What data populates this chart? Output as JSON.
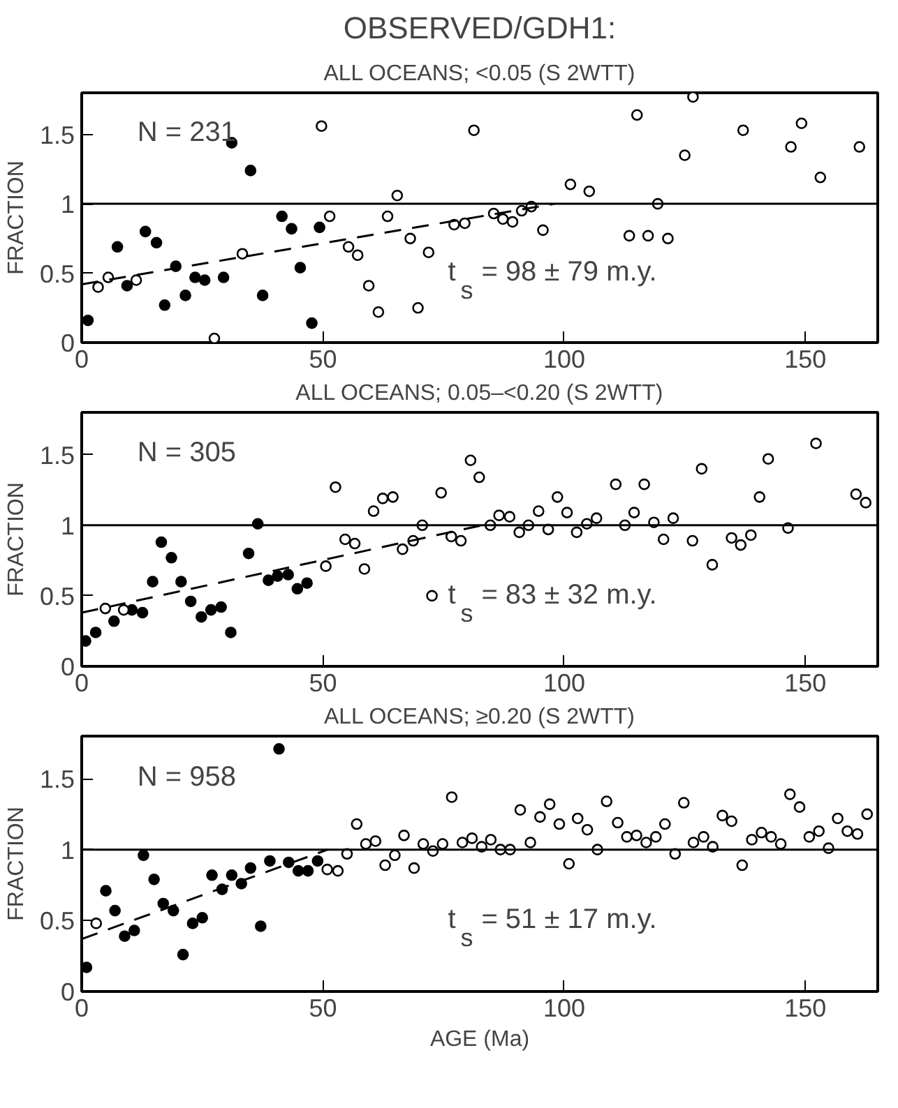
{
  "chart_data": [
    {
      "type": "scatter",
      "title": "OBSERVED/GDH1:",
      "subtitle": "ALL OCEANS; <0.05 (S 2WTT)",
      "ylabel": "FRACTION",
      "xlim": [
        0,
        165
      ],
      "ylim": [
        0,
        1.8
      ],
      "xticks": [
        0,
        50,
        100,
        150
      ],
      "yticks": [
        0,
        0.5,
        1,
        1.5
      ],
      "grid": false,
      "annotations": [
        "N = 231",
        "t$_{s}$ = 98 ± 79 m.y."
      ],
      "ref_lines": [
        {
          "axis": "y",
          "value": 1,
          "label": null,
          "color": "#000000",
          "line_style": "solid"
        }
      ],
      "series": [
        {
          "color": "#000000",
          "marker": "circle",
          "x": [
            1.3,
            7.4,
            9.4,
            13.2,
            15.5,
            17.2,
            19.5,
            21.5,
            23.5,
            25.5,
            29.4,
            31.1,
            35.0,
            37.5,
            41.5,
            43.5,
            45.3,
            47.7,
            49.3
          ],
          "values": [
            0.16,
            0.69,
            0.41,
            0.8,
            0.72,
            0.27,
            0.55,
            0.34,
            0.47,
            0.45,
            0.47,
            1.44,
            1.24,
            0.34,
            0.91,
            0.82,
            0.54,
            0.14,
            0.83
          ]
        },
        {
          "color": "#000000",
          "marker": "circle",
          "x": [
            3.4,
            5.5,
            11.3,
            27.5,
            33.3,
            49.7,
            51.4,
            55.3,
            57.2,
            59.5,
            61.5,
            63.4,
            65.4,
            68.1,
            69.7,
            71.9,
            77.2,
            79.4,
            81.3,
            85.4,
            87.3,
            89.3,
            91.2,
            93.2,
            95.6,
            101.3,
            105.2,
            113.5,
            115.1,
            117.4,
            119.4,
            121.5,
            125.0,
            126.7,
            137.1,
            147.0,
            149.2,
            153.1,
            161.2
          ],
          "values": [
            0.4,
            0.47,
            0.45,
            0.03,
            0.64,
            1.56,
            0.91,
            0.69,
            0.63,
            0.41,
            0.22,
            0.91,
            1.06,
            0.75,
            0.25,
            0.65,
            0.85,
            0.86,
            1.53,
            0.93,
            0.89,
            0.87,
            0.95,
            0.98,
            0.81,
            1.14,
            1.09,
            0.77,
            1.64,
            0.77,
            1.0,
            0.75,
            1.35,
            1.77,
            1.53,
            1.41,
            1.58,
            1.19,
            1.41
          ]
        },
        {
          "type": "line",
          "marker": "none",
          "color": "#000000",
          "line_style": "dashed",
          "x": [
            0,
            98
          ],
          "values": [
            0.42,
            1.0
          ]
        }
      ]
    },
    {
      "type": "scatter",
      "title": "ALL OCEANS; 0.05–<0.20 (S 2WTT)",
      "ylabel": "FRACTION",
      "xlim": [
        0,
        165
      ],
      "ylim": [
        0,
        1.8
      ],
      "xticks": [
        0,
        50,
        100,
        150
      ],
      "yticks": [
        0,
        0.5,
        1,
        1.5
      ],
      "grid": false,
      "annotations": [
        "N = 305",
        "t$_{s}$ = 83 ± 32 m.y."
      ],
      "ref_lines": [
        {
          "axis": "y",
          "value": 1,
          "label": null,
          "color": "#000000",
          "line_style": "solid"
        }
      ],
      "series": [
        {
          "color": "#000000",
          "marker": "circle",
          "x": [
            0.8,
            2.9,
            6.7,
            10.4,
            12.6,
            14.7,
            16.5,
            18.6,
            20.6,
            22.6,
            24.8,
            26.8,
            28.9,
            30.9,
            34.6,
            36.5,
            38.7,
            40.6,
            42.8,
            44.7,
            46.7
          ],
          "values": [
            0.18,
            0.24,
            0.32,
            0.4,
            0.38,
            0.6,
            0.88,
            0.77,
            0.6,
            0.46,
            0.35,
            0.4,
            0.42,
            0.24,
            0.8,
            1.01,
            0.61,
            0.64,
            0.65,
            0.55,
            0.59
          ]
        },
        {
          "color": "#000000",
          "marker": "circle",
          "x": [
            4.9,
            8.7,
            50.6,
            52.6,
            54.6,
            56.6,
            58.6,
            60.5,
            62.4,
            64.5,
            66.5,
            68.7,
            70.6,
            72.6,
            74.5,
            76.6,
            78.6,
            80.6,
            82.4,
            84.7,
            86.5,
            88.7,
            90.7,
            92.6,
            94.7,
            96.7,
            98.6,
            100.6,
            102.6,
            104.7,
            106.7,
            110.7,
            112.6,
            114.5,
            116.6,
            118.6,
            120.6,
            122.6,
            126.6,
            128.5,
            130.7,
            134.7,
            136.6,
            138.7,
            140.5,
            142.3,
            146.4,
            152.2,
            160.5,
            162.5
          ],
          "values": [
            0.41,
            0.4,
            0.71,
            1.27,
            0.9,
            0.87,
            0.69,
            1.1,
            1.19,
            1.2,
            0.83,
            0.89,
            1.0,
            0.5,
            1.23,
            0.92,
            0.89,
            1.46,
            1.34,
            1.0,
            1.07,
            1.06,
            0.95,
            1.0,
            1.1,
            0.97,
            1.2,
            1.09,
            0.95,
            1.01,
            1.05,
            1.29,
            1.0,
            1.09,
            1.29,
            1.02,
            0.9,
            1.05,
            0.89,
            1.4,
            0.72,
            0.91,
            0.86,
            0.93,
            1.2,
            1.47,
            0.98,
            1.58,
            1.22,
            1.16
          ]
        },
        {
          "type": "line",
          "marker": "none",
          "color": "#000000",
          "line_style": "dashed",
          "x": [
            0,
            83
          ],
          "values": [
            0.38,
            1.0
          ]
        }
      ]
    },
    {
      "type": "scatter",
      "title": "ALL OCEANS; ≥0.20 (S 2WTT)",
      "xlabel": "AGE (Ma)",
      "ylabel": "FRACTION",
      "xlim": [
        0,
        165
      ],
      "ylim": [
        0,
        1.8
      ],
      "xticks": [
        0,
        50,
        100,
        150
      ],
      "yticks": [
        0,
        0.5,
        1,
        1.5
      ],
      "grid": false,
      "annotations": [
        "N = 958",
        "t$_{s}$ = 51 ± 17 m.y."
      ],
      "ref_lines": [
        {
          "axis": "y",
          "value": 1,
          "label": null,
          "color": "#000000",
          "line_style": "solid"
        }
      ],
      "series": [
        {
          "color": "#000000",
          "marker": "circle",
          "x": [
            1.0,
            5.0,
            6.9,
            8.9,
            10.9,
            12.8,
            15.0,
            16.9,
            19.0,
            21.0,
            23.0,
            25.0,
            27.0,
            29.1,
            31.1,
            33.1,
            35.0,
            37.1,
            39.0,
            40.9,
            42.9,
            44.9,
            46.9,
            48.9
          ],
          "values": [
            0.17,
            0.71,
            0.57,
            0.39,
            0.43,
            0.96,
            0.79,
            0.62,
            0.57,
            0.26,
            0.48,
            0.52,
            0.82,
            0.72,
            0.82,
            0.76,
            0.87,
            0.46,
            0.92,
            1.71,
            0.91,
            0.85,
            0.85,
            0.92
          ]
        },
        {
          "color": "#000000",
          "marker": "circle",
          "x": [
            3.0,
            50.9,
            53.1,
            55.0,
            57.0,
            58.9,
            60.9,
            62.9,
            64.9,
            66.8,
            68.9,
            70.8,
            72.8,
            74.8,
            76.7,
            78.9,
            80.9,
            82.9,
            84.8,
            86.8,
            88.8,
            90.9,
            93.0,
            95.0,
            97.0,
            99.0,
            101.0,
            102.8,
            104.8,
            106.9,
            108.8,
            111.1,
            113.0,
            115.0,
            117.0,
            119.0,
            120.9,
            123.0,
            124.8,
            126.8,
            128.9,
            130.8,
            132.8,
            134.7,
            136.9,
            138.9,
            140.9,
            142.9,
            144.9,
            146.8,
            148.8,
            150.8,
            152.8,
            154.8,
            156.7,
            158.7,
            160.8,
            162.8
          ],
          "values": [
            0.48,
            0.86,
            0.85,
            0.97,
            1.18,
            1.04,
            1.06,
            0.89,
            0.96,
            1.1,
            0.87,
            1.04,
            0.99,
            1.04,
            1.37,
            1.05,
            1.08,
            1.02,
            1.07,
            1.0,
            1.0,
            1.28,
            1.05,
            1.23,
            1.32,
            1.18,
            0.9,
            1.22,
            1.14,
            1.0,
            1.34,
            1.19,
            1.09,
            1.1,
            1.05,
            1.09,
            1.18,
            0.97,
            1.33,
            1.05,
            1.09,
            1.02,
            1.24,
            1.2,
            0.89,
            1.07,
            1.12,
            1.09,
            1.04,
            1.39,
            1.3,
            1.09,
            1.13,
            1.01,
            1.22,
            1.13,
            1.11,
            1.25
          ]
        },
        {
          "type": "line",
          "marker": "none",
          "color": "#000000",
          "line_style": "dashed",
          "x": [
            0,
            51
          ],
          "values": [
            0.37,
            1.0
          ]
        }
      ]
    }
  ]
}
